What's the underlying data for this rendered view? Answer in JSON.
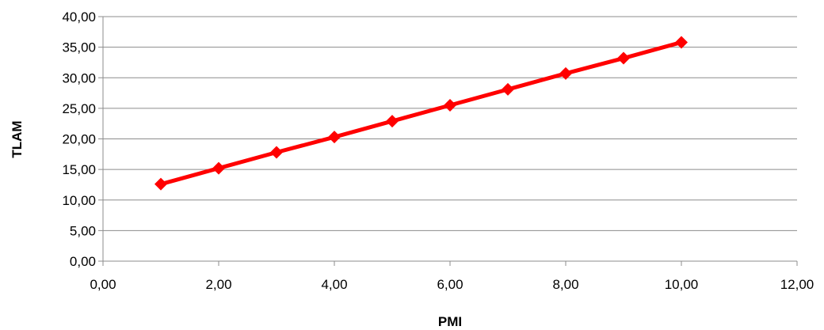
{
  "chart_data": {
    "type": "line",
    "title": "",
    "xlabel": "PMI",
    "ylabel": "TLAM",
    "xlim": [
      0,
      12
    ],
    "ylim": [
      0,
      40
    ],
    "x_ticks": [
      "0,00",
      "2,00",
      "4,00",
      "6,00",
      "8,00",
      "10,00",
      "12,00"
    ],
    "y_ticks": [
      "0,00",
      "5,00",
      "10,00",
      "15,00",
      "20,00",
      "25,00",
      "30,00",
      "35,00",
      "40,00"
    ],
    "grid": "horizontal",
    "legend": "none",
    "series": [
      {
        "color": "#ff0000",
        "marker": "diamond",
        "x": [
          1,
          2,
          3,
          4,
          5,
          6,
          7,
          8,
          9,
          10
        ],
        "y": [
          12.6,
          15.2,
          17.8,
          20.3,
          22.9,
          25.5,
          28.1,
          30.7,
          33.2,
          35.8
        ]
      }
    ]
  }
}
